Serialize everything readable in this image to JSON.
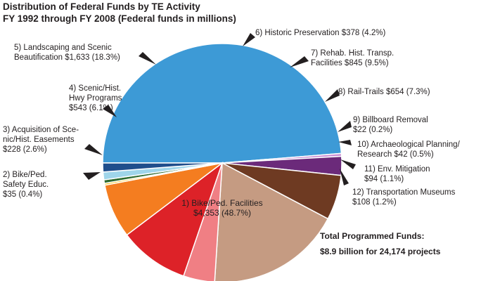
{
  "chart_data": {
    "type": "pie",
    "title": "Distribution of Federal Funds by TE Activity",
    "subtitle": "FY 1992 through FY 2008 (Federal funds in millions)",
    "slices": [
      {
        "label": [
          "1) Bike/Ped. Facilities",
          "$4,353 (48.7%)"
        ],
        "value": 4353,
        "percent": 48.7,
        "color": "#3d9ad6"
      },
      {
        "label": [
          "2) Bike/Ped.",
          "Safety Educ.",
          "$35 (0.4%)"
        ],
        "value": 35,
        "percent": 0.4,
        "color": "#c98fd4"
      },
      {
        "label": [
          "3) Acquisition of Sce-",
          "nic/Hist. Easements",
          "$228 (2.6%)"
        ],
        "value": 228,
        "percent": 2.6,
        "color": "#6b2a7a"
      },
      {
        "label": [
          "4) Scenic/Hist.",
          "Hwy Programs",
          "$543 (6.1%)"
        ],
        "value": 543,
        "percent": 6.1,
        "color": "#6e3a22"
      },
      {
        "label": [
          "5) Landscaping and Scenic",
          "Beautification $1,633 (18.3%)"
        ],
        "value": 1633,
        "percent": 18.3,
        "color": "#c59b82"
      },
      {
        "label": [
          "6) Historic Preservation $378 (4.2%)"
        ],
        "value": 378,
        "percent": 4.2,
        "color": "#f07f84"
      },
      {
        "label": [
          "7) Rehab. Hist. Transp.",
          "Facilities $845 (9.5%)"
        ],
        "value": 845,
        "percent": 9.5,
        "color": "#dd2228"
      },
      {
        "label": [
          "8) Rail-Trails $654 (7.3%)"
        ],
        "value": 654,
        "percent": 7.3,
        "color": "#f47d20"
      },
      {
        "label": [
          "9) Billboard Removal",
          "$22 (0.2%)"
        ],
        "value": 22,
        "percent": 0.2,
        "color": "#f3c317"
      },
      {
        "label": [
          "10) Archaeological Planning/",
          "Research $42 (0.5%)"
        ],
        "value": 42,
        "percent": 0.5,
        "color": "#2e6b30"
      },
      {
        "label": [
          "11) Env. Mitigation",
          "$94 (1.1%)"
        ],
        "value": 94,
        "percent": 1.1,
        "color": "#9fd5ea"
      },
      {
        "label": [
          "12) Transportation Museums",
          "$108 (1.2%)"
        ],
        "value": 108,
        "percent": 1.2,
        "color": "#1f4e8c"
      }
    ],
    "note": [
      "Total Programmed Funds:",
      "$8.9 billion for 24,174 projects"
    ]
  }
}
